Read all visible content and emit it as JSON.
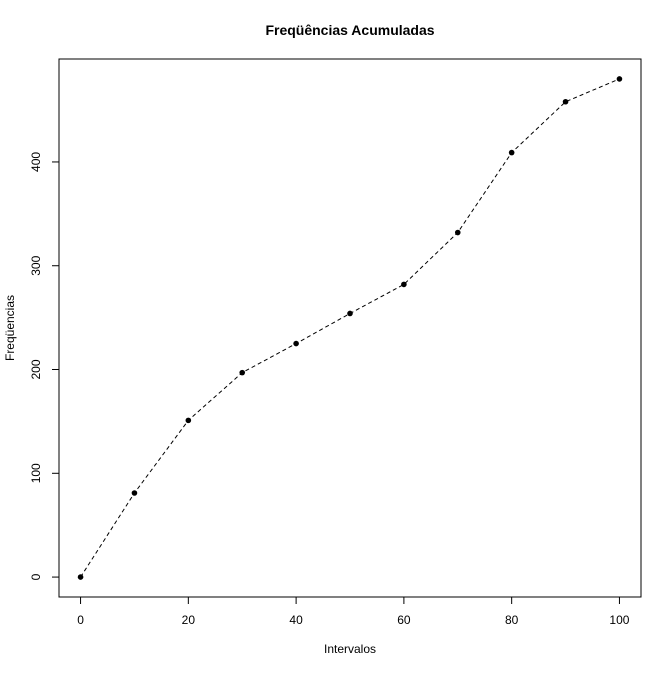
{
  "chart_data": {
    "type": "line",
    "title": "Freqüências Acumuladas",
    "xlabel": "Intervalos",
    "ylabel": "Freqüencias",
    "x": [
      0,
      10,
      20,
      30,
      40,
      50,
      60,
      70,
      80,
      90,
      100
    ],
    "series": [
      {
        "values": [
          0,
          81,
          151,
          197,
          225,
          254,
          282,
          332,
          409,
          458,
          480
        ]
      }
    ],
    "xlim": [
      -4,
      104
    ],
    "ylim": [
      -19.2,
      499.2
    ],
    "xticks": [
      0,
      20,
      40,
      60,
      80,
      100
    ],
    "yticks": [
      0,
      100,
      200,
      300,
      400
    ],
    "xtick_labels": [
      "0",
      "20",
      "40",
      "60",
      "80",
      "100"
    ],
    "ytick_labels": [
      "0",
      "100",
      "200",
      "300",
      "400"
    ],
    "line_style": "dashed",
    "marker": "filled-circle",
    "grid": false,
    "legend": "none",
    "colors": {
      "line": "#000000",
      "marker": "#000000",
      "axes": "#000000",
      "background": "#ffffff"
    }
  }
}
